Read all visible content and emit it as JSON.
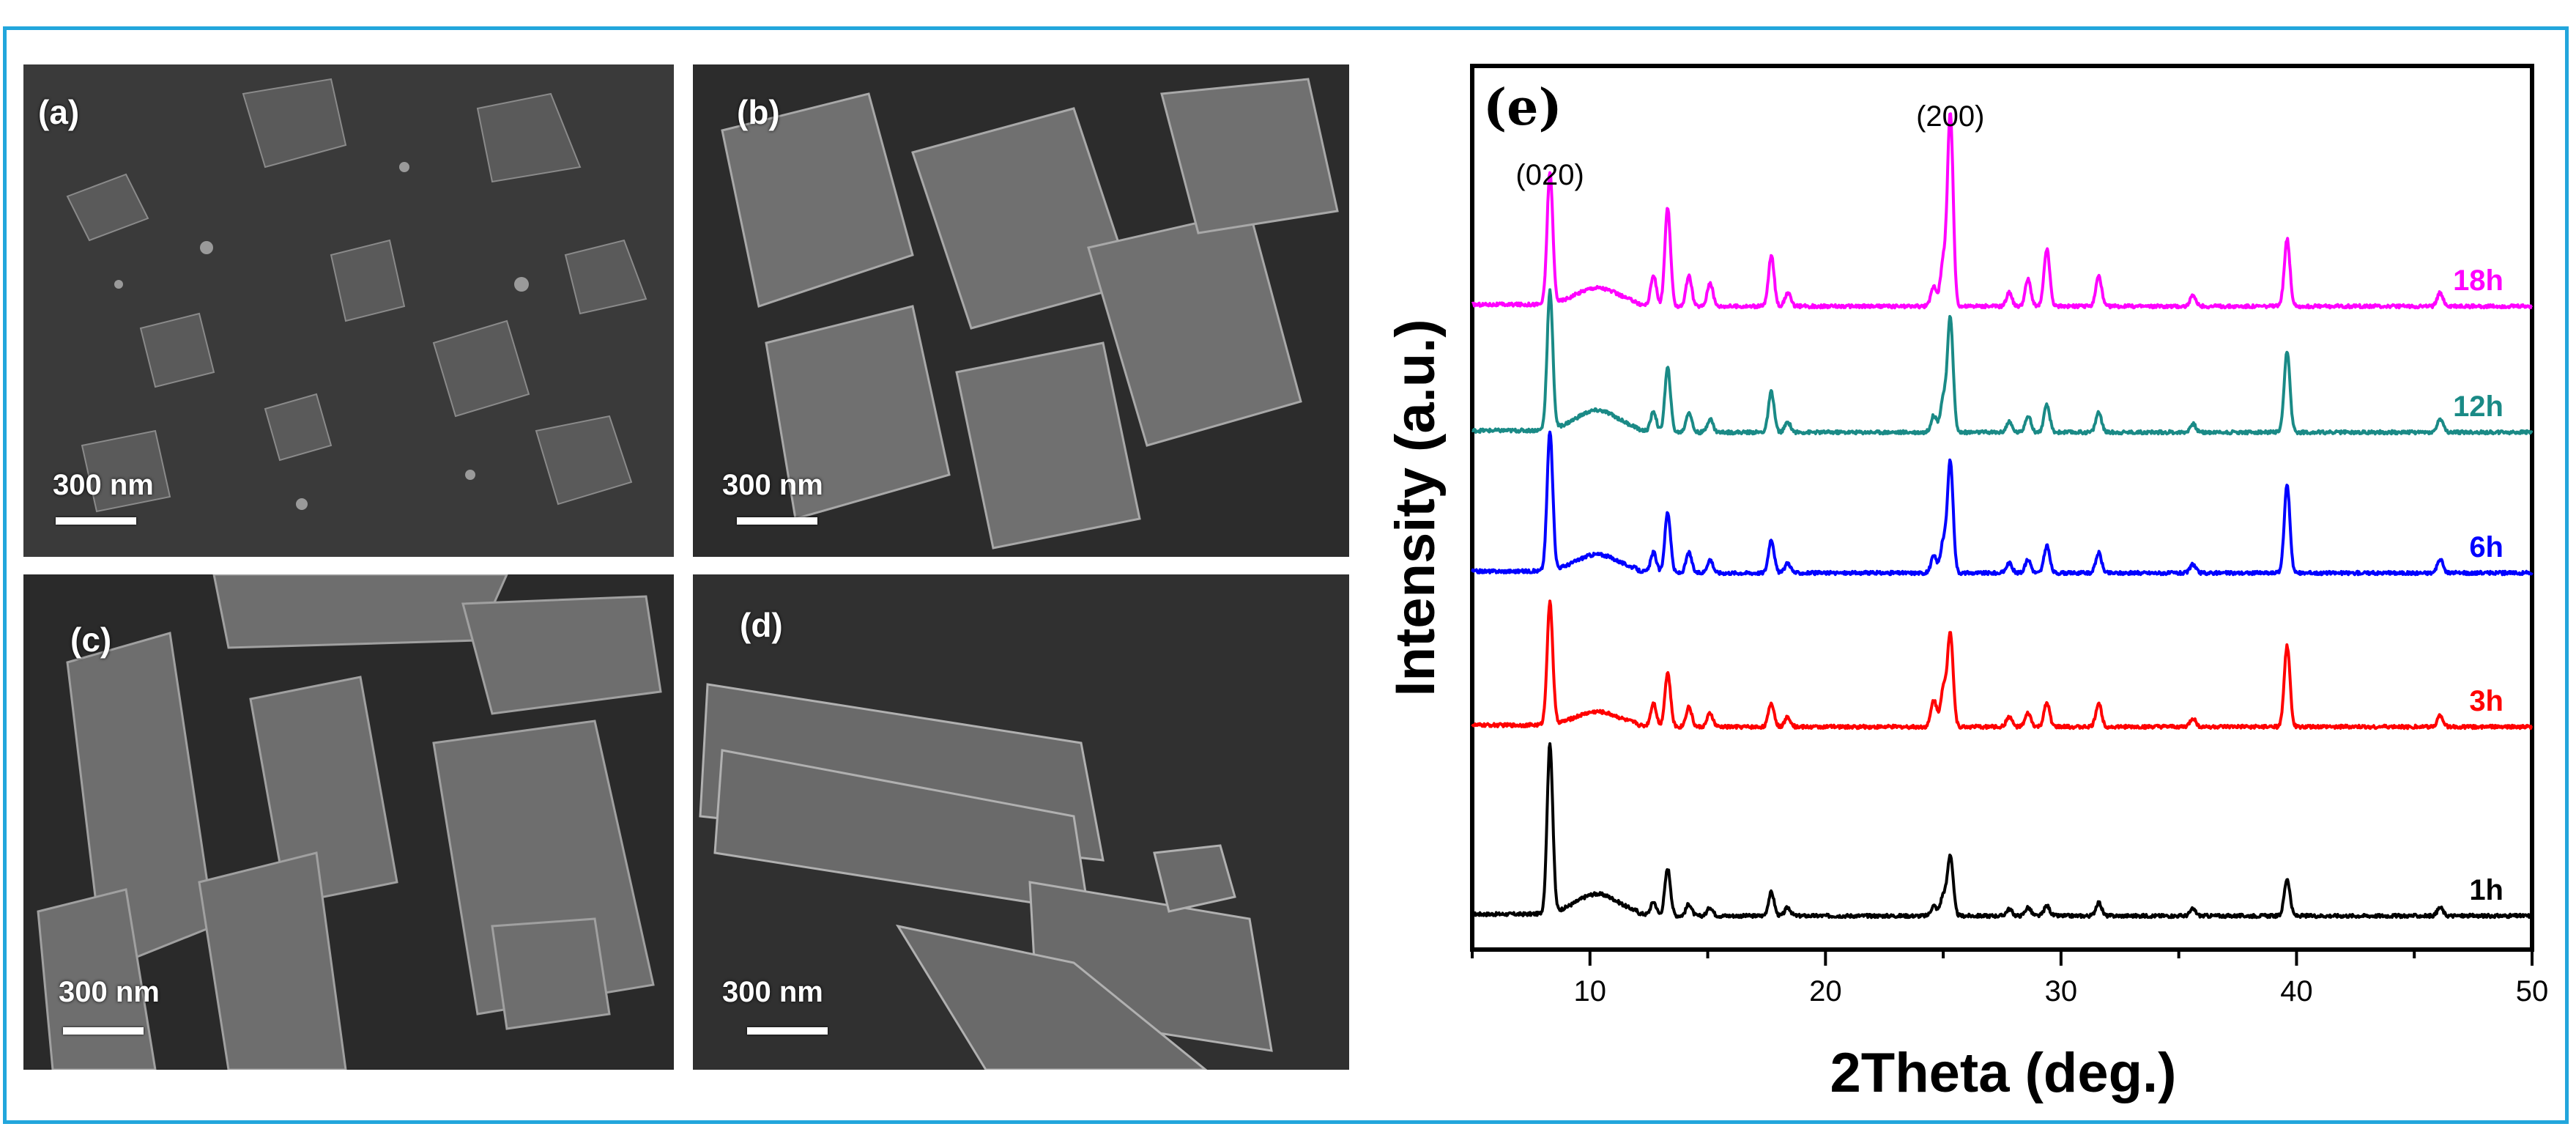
{
  "panels": [
    {
      "label": "(a)",
      "scale": "300 nm"
    },
    {
      "label": "(b)",
      "scale": "300 nm"
    },
    {
      "label": "(c)",
      "scale": "300 nm"
    },
    {
      "label": "(d)",
      "scale": "300 nm"
    }
  ],
  "chart_data": {
    "type": "line",
    "panel_label": "(e)",
    "xlabel": "2Theta (deg.)",
    "ylabel": "Intensity (a.u.)",
    "xlim": [
      5,
      50
    ],
    "xticks": [
      10,
      20,
      30,
      40,
      50
    ],
    "y_ticks_shown": false,
    "annotations": [
      {
        "text": "(020)",
        "x": 8.3
      },
      {
        "text": "(200)",
        "x": 25.3
      }
    ],
    "peaks_2theta": [
      8.3,
      10.3,
      12.7,
      13.3,
      14.2,
      15.1,
      17.7,
      18.4,
      24.6,
      25.0,
      25.3,
      27.8,
      28.6,
      29.4,
      31.6,
      35.6,
      39.6,
      46.1
    ],
    "series": [
      {
        "name": "1h",
        "color": "#000000",
        "intensities": [
          1.0,
          0.12,
          0.08,
          0.28,
          0.07,
          0.05,
          0.14,
          0.05,
          0.06,
          0.12,
          0.36,
          0.04,
          0.05,
          0.06,
          0.08,
          0.04,
          0.22,
          0.05
        ]
      },
      {
        "name": "3h",
        "color": "#ff0000",
        "intensities": [
          0.72,
          0.08,
          0.14,
          0.32,
          0.12,
          0.08,
          0.14,
          0.06,
          0.16,
          0.22,
          0.56,
          0.06,
          0.08,
          0.14,
          0.14,
          0.05,
          0.48,
          0.07
        ]
      },
      {
        "name": "6h",
        "color": "#0000ff",
        "intensities": [
          0.82,
          0.1,
          0.12,
          0.36,
          0.12,
          0.08,
          0.2,
          0.06,
          0.1,
          0.18,
          0.66,
          0.06,
          0.08,
          0.16,
          0.12,
          0.05,
          0.52,
          0.08
        ]
      },
      {
        "name": "12h",
        "color": "#1a8a86",
        "intensities": [
          0.82,
          0.12,
          0.12,
          0.38,
          0.12,
          0.08,
          0.24,
          0.06,
          0.1,
          0.2,
          0.68,
          0.06,
          0.1,
          0.16,
          0.12,
          0.05,
          0.48,
          0.08
        ]
      },
      {
        "name": "18h",
        "color": "#ff00ff",
        "intensities": [
          0.78,
          0.1,
          0.18,
          0.58,
          0.18,
          0.14,
          0.3,
          0.08,
          0.12,
          0.26,
          1.14,
          0.08,
          0.16,
          0.34,
          0.18,
          0.06,
          0.4,
          0.08
        ]
      }
    ]
  }
}
